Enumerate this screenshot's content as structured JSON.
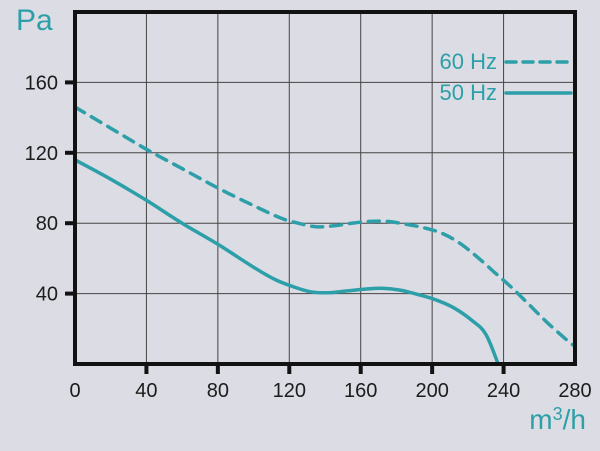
{
  "colors": {
    "accent": "#2d9fa8",
    "background": "#dbdce4",
    "grid": "#454545",
    "border": "#121212",
    "tick_text": "#1c1c1c"
  },
  "labels": {
    "y_unit": "Pa",
    "x_unit_base": "m",
    "x_unit_sup": "3",
    "x_unit_rest": "/h"
  },
  "chart_data": {
    "type": "line",
    "title": "",
    "xlabel": "m3/h",
    "ylabel": "Pa",
    "xlim": [
      0,
      280
    ],
    "ylim": [
      0,
      200
    ],
    "xticks": [
      0,
      40,
      80,
      120,
      160,
      200,
      240,
      280
    ],
    "yticks": [
      40,
      80,
      120,
      160
    ],
    "grid": true,
    "legend_position": "top-right",
    "series": [
      {
        "name": "60 Hz",
        "style": "dashed",
        "points": [
          [
            0,
            146
          ],
          [
            20,
            134
          ],
          [
            40,
            122
          ],
          [
            60,
            111
          ],
          [
            80,
            100
          ],
          [
            100,
            90
          ],
          [
            115,
            83
          ],
          [
            125,
            80
          ],
          [
            135,
            78
          ],
          [
            145,
            78.5
          ],
          [
            155,
            80
          ],
          [
            165,
            81
          ],
          [
            175,
            81
          ],
          [
            185,
            79.5
          ],
          [
            195,
            77.5
          ],
          [
            205,
            74.5
          ],
          [
            215,
            69
          ],
          [
            225,
            61
          ],
          [
            235,
            52
          ],
          [
            245,
            43
          ],
          [
            255,
            33
          ],
          [
            265,
            23
          ],
          [
            275,
            14
          ],
          [
            280,
            10
          ]
        ]
      },
      {
        "name": "50 Hz",
        "style": "solid",
        "points": [
          [
            0,
            116
          ],
          [
            20,
            105
          ],
          [
            40,
            93
          ],
          [
            60,
            80
          ],
          [
            80,
            68
          ],
          [
            100,
            55
          ],
          [
            112,
            48
          ],
          [
            122,
            44
          ],
          [
            132,
            41
          ],
          [
            142,
            40.5
          ],
          [
            152,
            41.5
          ],
          [
            162,
            42.5
          ],
          [
            172,
            43
          ],
          [
            182,
            42
          ],
          [
            192,
            39.5
          ],
          [
            202,
            36.5
          ],
          [
            212,
            32
          ],
          [
            222,
            25
          ],
          [
            230,
            17
          ],
          [
            237,
            0
          ]
        ]
      }
    ]
  }
}
